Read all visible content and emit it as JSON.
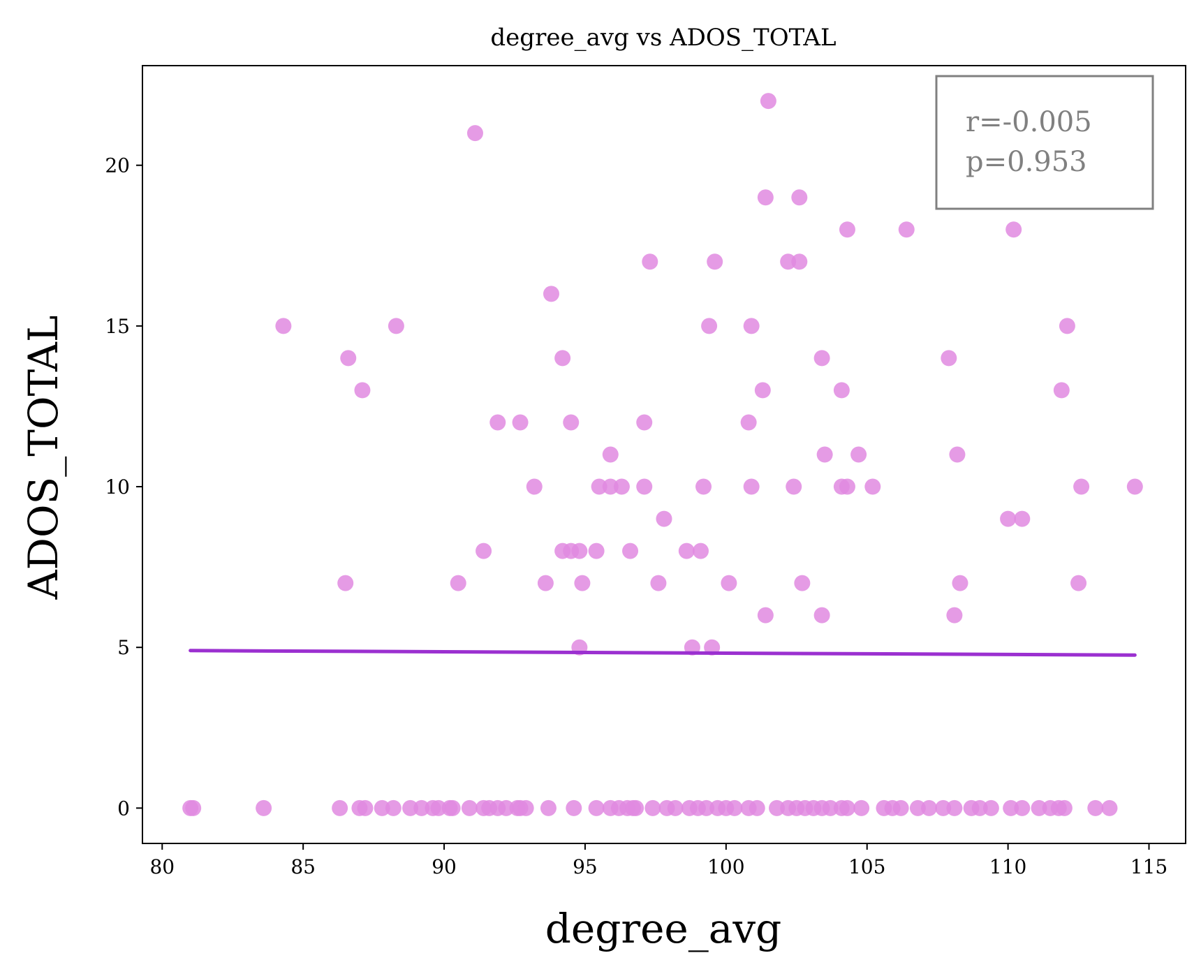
{
  "chart_data": {
    "type": "scatter",
    "title": "degree_avg vs ADOS_TOTAL",
    "xlabel": "degree_avg",
    "ylabel": "ADOS_TOTAL",
    "xlim": [
      79.3,
      116.3
    ],
    "ylim": [
      -1.1,
      23.1
    ],
    "xticks": [
      80,
      85,
      90,
      95,
      100,
      105,
      110,
      115
    ],
    "yticks": [
      0,
      5,
      10,
      15,
      20
    ],
    "grid": false,
    "point_color": "#e08ae0",
    "line_color": "#9b30d0",
    "annotation": {
      "r_text": "r=-0.005",
      "p_text": "p=0.953",
      "text_color": "#808080",
      "border_color": "#808080",
      "placement": "top-right"
    },
    "regression": {
      "x": [
        81.0,
        114.5
      ],
      "y": [
        4.9,
        4.76
      ]
    },
    "points": [
      [
        101.5,
        22
      ],
      [
        91.1,
        21
      ],
      [
        101.4,
        19
      ],
      [
        102.6,
        19
      ],
      [
        104.3,
        18
      ],
      [
        106.4,
        18
      ],
      [
        110.2,
        18
      ],
      [
        97.3,
        17
      ],
      [
        99.6,
        17
      ],
      [
        102.2,
        17
      ],
      [
        102.6,
        17
      ],
      [
        93.8,
        16
      ],
      [
        84.3,
        15
      ],
      [
        88.3,
        15
      ],
      [
        99.4,
        15
      ],
      [
        100.9,
        15
      ],
      [
        112.1,
        15
      ],
      [
        86.6,
        14
      ],
      [
        94.2,
        14
      ],
      [
        103.4,
        14
      ],
      [
        107.9,
        14
      ],
      [
        87.1,
        13
      ],
      [
        101.3,
        13
      ],
      [
        104.1,
        13
      ],
      [
        111.9,
        13
      ],
      [
        91.9,
        12
      ],
      [
        92.7,
        12
      ],
      [
        94.5,
        12
      ],
      [
        97.1,
        12
      ],
      [
        100.8,
        12
      ],
      [
        95.9,
        11
      ],
      [
        103.5,
        11
      ],
      [
        104.7,
        11
      ],
      [
        108.2,
        11
      ],
      [
        93.2,
        10
      ],
      [
        95.5,
        10
      ],
      [
        95.9,
        10
      ],
      [
        96.3,
        10
      ],
      [
        97.1,
        10
      ],
      [
        99.2,
        10
      ],
      [
        100.9,
        10
      ],
      [
        102.4,
        10
      ],
      [
        104.1,
        10
      ],
      [
        104.3,
        10
      ],
      [
        105.2,
        10
      ],
      [
        112.6,
        10
      ],
      [
        114.5,
        10
      ],
      [
        97.8,
        9
      ],
      [
        110.0,
        9
      ],
      [
        110.5,
        9
      ],
      [
        91.4,
        8
      ],
      [
        94.2,
        8
      ],
      [
        94.5,
        8
      ],
      [
        94.8,
        8
      ],
      [
        95.4,
        8
      ],
      [
        96.6,
        8
      ],
      [
        98.6,
        8
      ],
      [
        99.1,
        8
      ],
      [
        86.5,
        7
      ],
      [
        90.5,
        7
      ],
      [
        93.6,
        7
      ],
      [
        94.9,
        7
      ],
      [
        97.6,
        7
      ],
      [
        100.1,
        7
      ],
      [
        102.7,
        7
      ],
      [
        108.3,
        7
      ],
      [
        112.5,
        7
      ],
      [
        101.4,
        6
      ],
      [
        103.4,
        6
      ],
      [
        108.1,
        6
      ],
      [
        94.8,
        5
      ],
      [
        98.8,
        5
      ],
      [
        99.5,
        5
      ],
      [
        81.0,
        0
      ],
      [
        81.1,
        0
      ],
      [
        83.6,
        0
      ],
      [
        86.3,
        0
      ],
      [
        87.0,
        0
      ],
      [
        87.2,
        0
      ],
      [
        87.8,
        0
      ],
      [
        88.2,
        0
      ],
      [
        88.8,
        0
      ],
      [
        89.2,
        0
      ],
      [
        89.6,
        0
      ],
      [
        89.8,
        0
      ],
      [
        90.2,
        0
      ],
      [
        90.3,
        0
      ],
      [
        90.9,
        0
      ],
      [
        91.4,
        0
      ],
      [
        91.6,
        0
      ],
      [
        91.9,
        0
      ],
      [
        92.2,
        0
      ],
      [
        92.6,
        0
      ],
      [
        92.7,
        0
      ],
      [
        92.9,
        0
      ],
      [
        93.7,
        0
      ],
      [
        94.6,
        0
      ],
      [
        95.4,
        0
      ],
      [
        95.9,
        0
      ],
      [
        96.2,
        0
      ],
      [
        96.5,
        0
      ],
      [
        96.7,
        0
      ],
      [
        96.8,
        0
      ],
      [
        97.4,
        0
      ],
      [
        97.9,
        0
      ],
      [
        98.2,
        0
      ],
      [
        98.7,
        0
      ],
      [
        99.0,
        0
      ],
      [
        99.3,
        0
      ],
      [
        99.7,
        0
      ],
      [
        100.0,
        0
      ],
      [
        100.3,
        0
      ],
      [
        100.8,
        0
      ],
      [
        101.1,
        0
      ],
      [
        101.8,
        0
      ],
      [
        102.2,
        0
      ],
      [
        102.5,
        0
      ],
      [
        102.8,
        0
      ],
      [
        103.1,
        0
      ],
      [
        103.4,
        0
      ],
      [
        103.7,
        0
      ],
      [
        104.1,
        0
      ],
      [
        104.3,
        0
      ],
      [
        104.8,
        0
      ],
      [
        105.6,
        0
      ],
      [
        105.9,
        0
      ],
      [
        106.2,
        0
      ],
      [
        106.8,
        0
      ],
      [
        107.2,
        0
      ],
      [
        107.7,
        0
      ],
      [
        108.1,
        0
      ],
      [
        108.7,
        0
      ],
      [
        109.0,
        0
      ],
      [
        109.4,
        0
      ],
      [
        110.1,
        0
      ],
      [
        110.5,
        0
      ],
      [
        111.1,
        0
      ],
      [
        111.5,
        0
      ],
      [
        111.8,
        0
      ],
      [
        112.0,
        0
      ],
      [
        113.1,
        0
      ],
      [
        113.6,
        0
      ]
    ]
  }
}
